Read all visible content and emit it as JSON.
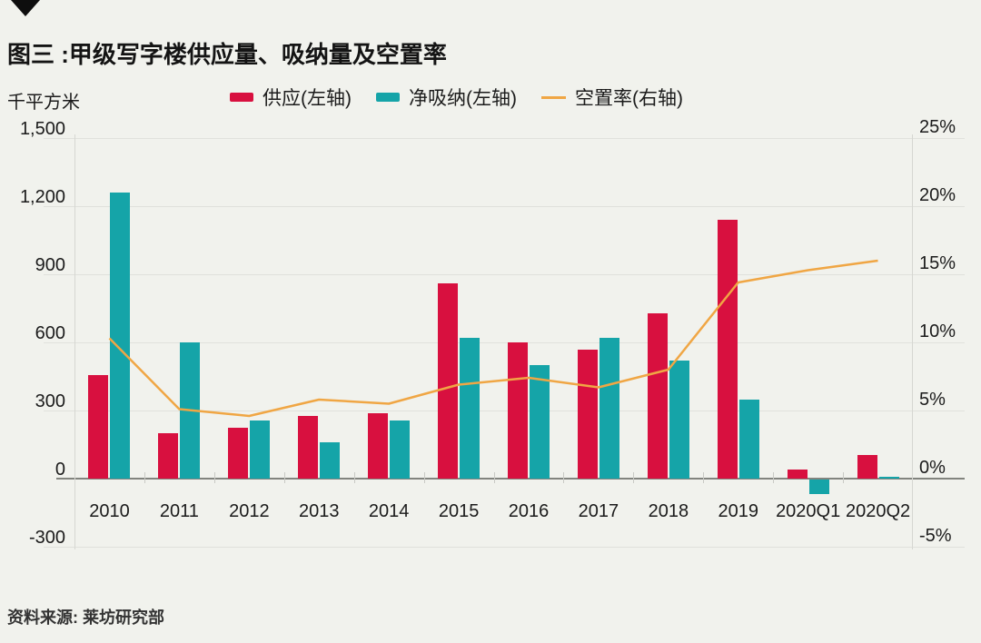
{
  "header": {
    "title": "图三 :甲级写字楼供应量、吸纳量及空置率"
  },
  "footer": {
    "source": "资料来源: 莱坊研究部"
  },
  "colors": {
    "background": "#F1F2ED"
  },
  "chart_data": {
    "type": "bar+line",
    "categories": [
      "2010",
      "2011",
      "2012",
      "2013",
      "2014",
      "2015",
      "2016",
      "2017",
      "2018",
      "2019",
      "2020Q1",
      "2020Q2"
    ],
    "series": [
      {
        "name": "供应(左轴)",
        "type": "bar",
        "axis": "left",
        "color": "#D8103F",
        "values": [
          455,
          200,
          225,
          275,
          290,
          860,
          600,
          570,
          730,
          1140,
          40,
          105
        ]
      },
      {
        "name": "净吸纳(左轴)",
        "type": "bar",
        "axis": "left",
        "color": "#15A4A8",
        "values": [
          1260,
          600,
          255,
          160,
          255,
          620,
          500,
          620,
          520,
          350,
          -65,
          10
        ]
      },
      {
        "name": "空置率(右轴)",
        "type": "line",
        "axis": "right",
        "color": "#F0A644",
        "values": [
          10.3,
          5.1,
          4.6,
          5.8,
          5.5,
          6.9,
          7.4,
          6.7,
          8.0,
          14.4,
          15.3,
          16.0
        ]
      }
    ],
    "left_axis": {
      "label": "千平方米",
      "ticks": [
        "1,500",
        "1,200",
        "900",
        "600",
        "300",
        "0",
        "-300"
      ],
      "min": -300,
      "max": 1500
    },
    "right_axis": {
      "ticks": [
        "25%",
        "20%",
        "15%",
        "10%",
        "5%",
        "0%",
        "-5%"
      ],
      "min": -5,
      "max": 25
    },
    "grid": true,
    "legend_position": "top"
  }
}
